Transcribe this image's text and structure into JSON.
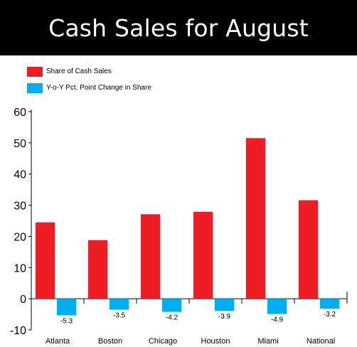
{
  "chart_data": {
    "type": "bar",
    "title": "Cash Sales for August",
    "categories": [
      "Atlanta",
      "Boston",
      "Chicago",
      "Houston",
      "Miami",
      "National"
    ],
    "series": [
      {
        "name": "Share of Cash Sales",
        "color": "#ee1c25",
        "values": [
          24.5,
          18.8,
          27.1,
          27.9,
          51.5,
          31.6
        ]
      },
      {
        "name": "Y-o-Y Pct. Point Change in Share",
        "color": "#00aeef",
        "values": [
          -5.3,
          -3.5,
          -4.2,
          -3.9,
          -4.9,
          -3.2
        ],
        "labels": [
          "-5.3",
          "-3.5",
          "-4.2",
          "-3.9",
          "-4.9",
          "-3.2"
        ]
      }
    ],
    "ylim": [
      -10,
      60
    ],
    "yticks": [
      "60",
      "50",
      "40",
      "30",
      "20",
      "10",
      "0",
      "-10"
    ],
    "ytick_values": [
      60,
      50,
      40,
      30,
      20,
      10,
      0,
      -10
    ],
    "legend_position": "top-left",
    "grid": false
  }
}
